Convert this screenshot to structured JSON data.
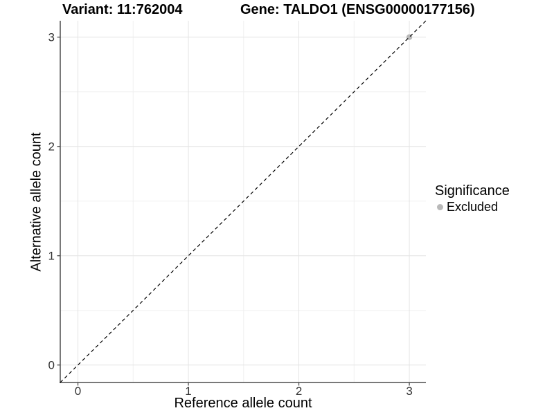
{
  "header": {
    "variant_title": "Variant: 11:762004",
    "gene_title": "Gene: TALDO1 (ENSG00000177156)"
  },
  "legend": {
    "title": "Significance",
    "items": [
      {
        "label": "Excluded",
        "color": "#b9b9b9"
      }
    ]
  },
  "colors": {
    "background": "#ffffff",
    "axis_line": "#4d4d4d",
    "tick_mark": "#4d4d4d",
    "tick_label": "#333333",
    "grid_major": "#e4e4e4",
    "grid_minor": "#f0f0f0",
    "identity_line": "#000000",
    "excluded_point": "#b9b9b9",
    "text": "#000000"
  },
  "chart_data": {
    "type": "scatter",
    "title": "Variant: 11:762004   Gene: TALDO1 (ENSG00000177156)",
    "xlabel": "Reference allele count",
    "ylabel": "Alternative allele count",
    "xlim": [
      -0.16,
      3.15
    ],
    "ylim": [
      -0.16,
      3.15
    ],
    "x_ticks": [
      0,
      1,
      2,
      3
    ],
    "y_ticks": [
      0,
      1,
      2,
      3
    ],
    "x_minor_ticks": [
      0.5,
      1.5,
      2.5
    ],
    "y_minor_ticks": [
      0.5,
      1.5,
      2.5
    ],
    "grid": true,
    "legend_position": "right",
    "series": [
      {
        "name": "Excluded",
        "color": "#b9b9b9",
        "points": [
          {
            "x": 3,
            "y": 3
          }
        ]
      }
    ],
    "reference_line": {
      "type": "identity",
      "equation": "y = x",
      "style": "dashed"
    }
  }
}
